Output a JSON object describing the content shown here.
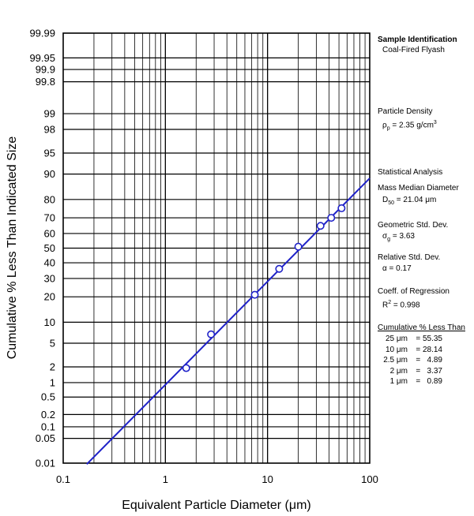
{
  "chart_data": {
    "type": "scatter",
    "xlabel": "Equivalent Particle Diameter (μm)",
    "ylabel": "Cumulative % Less Than Indicated Size",
    "xscale": "log",
    "yscale": "probability",
    "xlim": [
      0.1,
      100
    ],
    "ylim": [
      0.01,
      99.99
    ],
    "grid": true,
    "x_tick_labels": [
      "0.1",
      "1",
      "10",
      "100"
    ],
    "y_ticks": [
      0.01,
      0.05,
      0.1,
      0.2,
      0.5,
      1,
      2,
      5,
      10,
      20,
      30,
      40,
      50,
      60,
      70,
      80,
      90,
      95,
      98,
      99,
      99.8,
      99.9,
      99.95,
      99.99
    ],
    "y_tick_labels": [
      "0.01",
      "0.05",
      "0.1",
      "0.2",
      "0.5",
      "1",
      "2",
      "5",
      "10",
      "20",
      "30",
      "40",
      "50",
      "60",
      "70",
      "80",
      "90",
      "95",
      "98",
      "99",
      "99.8",
      "99.9",
      "99.95",
      "99.99"
    ],
    "points": [
      {
        "x": 1.6,
        "y": 1.9
      },
      {
        "x": 2.8,
        "y": 6.8
      },
      {
        "x": 7.5,
        "y": 21.0
      },
      {
        "x": 13.0,
        "y": 36.0
      },
      {
        "x": 20.0,
        "y": 51.0
      },
      {
        "x": 33.0,
        "y": 65.0
      },
      {
        "x": 42.0,
        "y": 70.0
      },
      {
        "x": 53.0,
        "y": 75.5
      }
    ],
    "fit_line": {
      "d50": 21.04,
      "sigma_g": 3.63,
      "x_range": [
        0.17,
        100
      ]
    }
  },
  "colors": {
    "line": "#1f22c8",
    "marker_edge": "#1f22c8",
    "marker_fill": "#ffffff",
    "grid": "#000000"
  },
  "annotations": {
    "sample_title": "Sample Identification",
    "sample_value": "Coal-Fired Flyash",
    "density_title": "Particle Density",
    "density_symbol": "ρ",
    "density_sub": "p",
    "density_value": " = 2.35 g/cm",
    "density_sup": "3",
    "stats_title": "Statistical Analysis",
    "mmd_title": "Mass Median Diameter",
    "mmd_symbol": "D",
    "mmd_sub": "50",
    "mmd_value": " = 21.04 μm",
    "gsd_title": "Geometric Std. Dev.",
    "gsd_symbol": "σ",
    "gsd_sub": "g",
    "gsd_value": " = 3.63",
    "rsd_title": "Relative Std. Dev.",
    "rsd_value": "α = 0.17",
    "reg_title": "Coeff. of Regression",
    "reg_symbol": "R",
    "reg_sup": "2",
    "reg_value": " = 0.998",
    "cum_title": "Cumulative % Less Than",
    "cum_rows": [
      {
        "size": "25 μm",
        "value": "= 55.35"
      },
      {
        "size": "10 μm",
        "value": "= 28.14"
      },
      {
        "size": "2.5 μm",
        "value": "=   4.89"
      },
      {
        "size": "2 μm",
        "value": "=   3.37"
      },
      {
        "size": "1 μm",
        "value": "=   0.89"
      }
    ]
  }
}
